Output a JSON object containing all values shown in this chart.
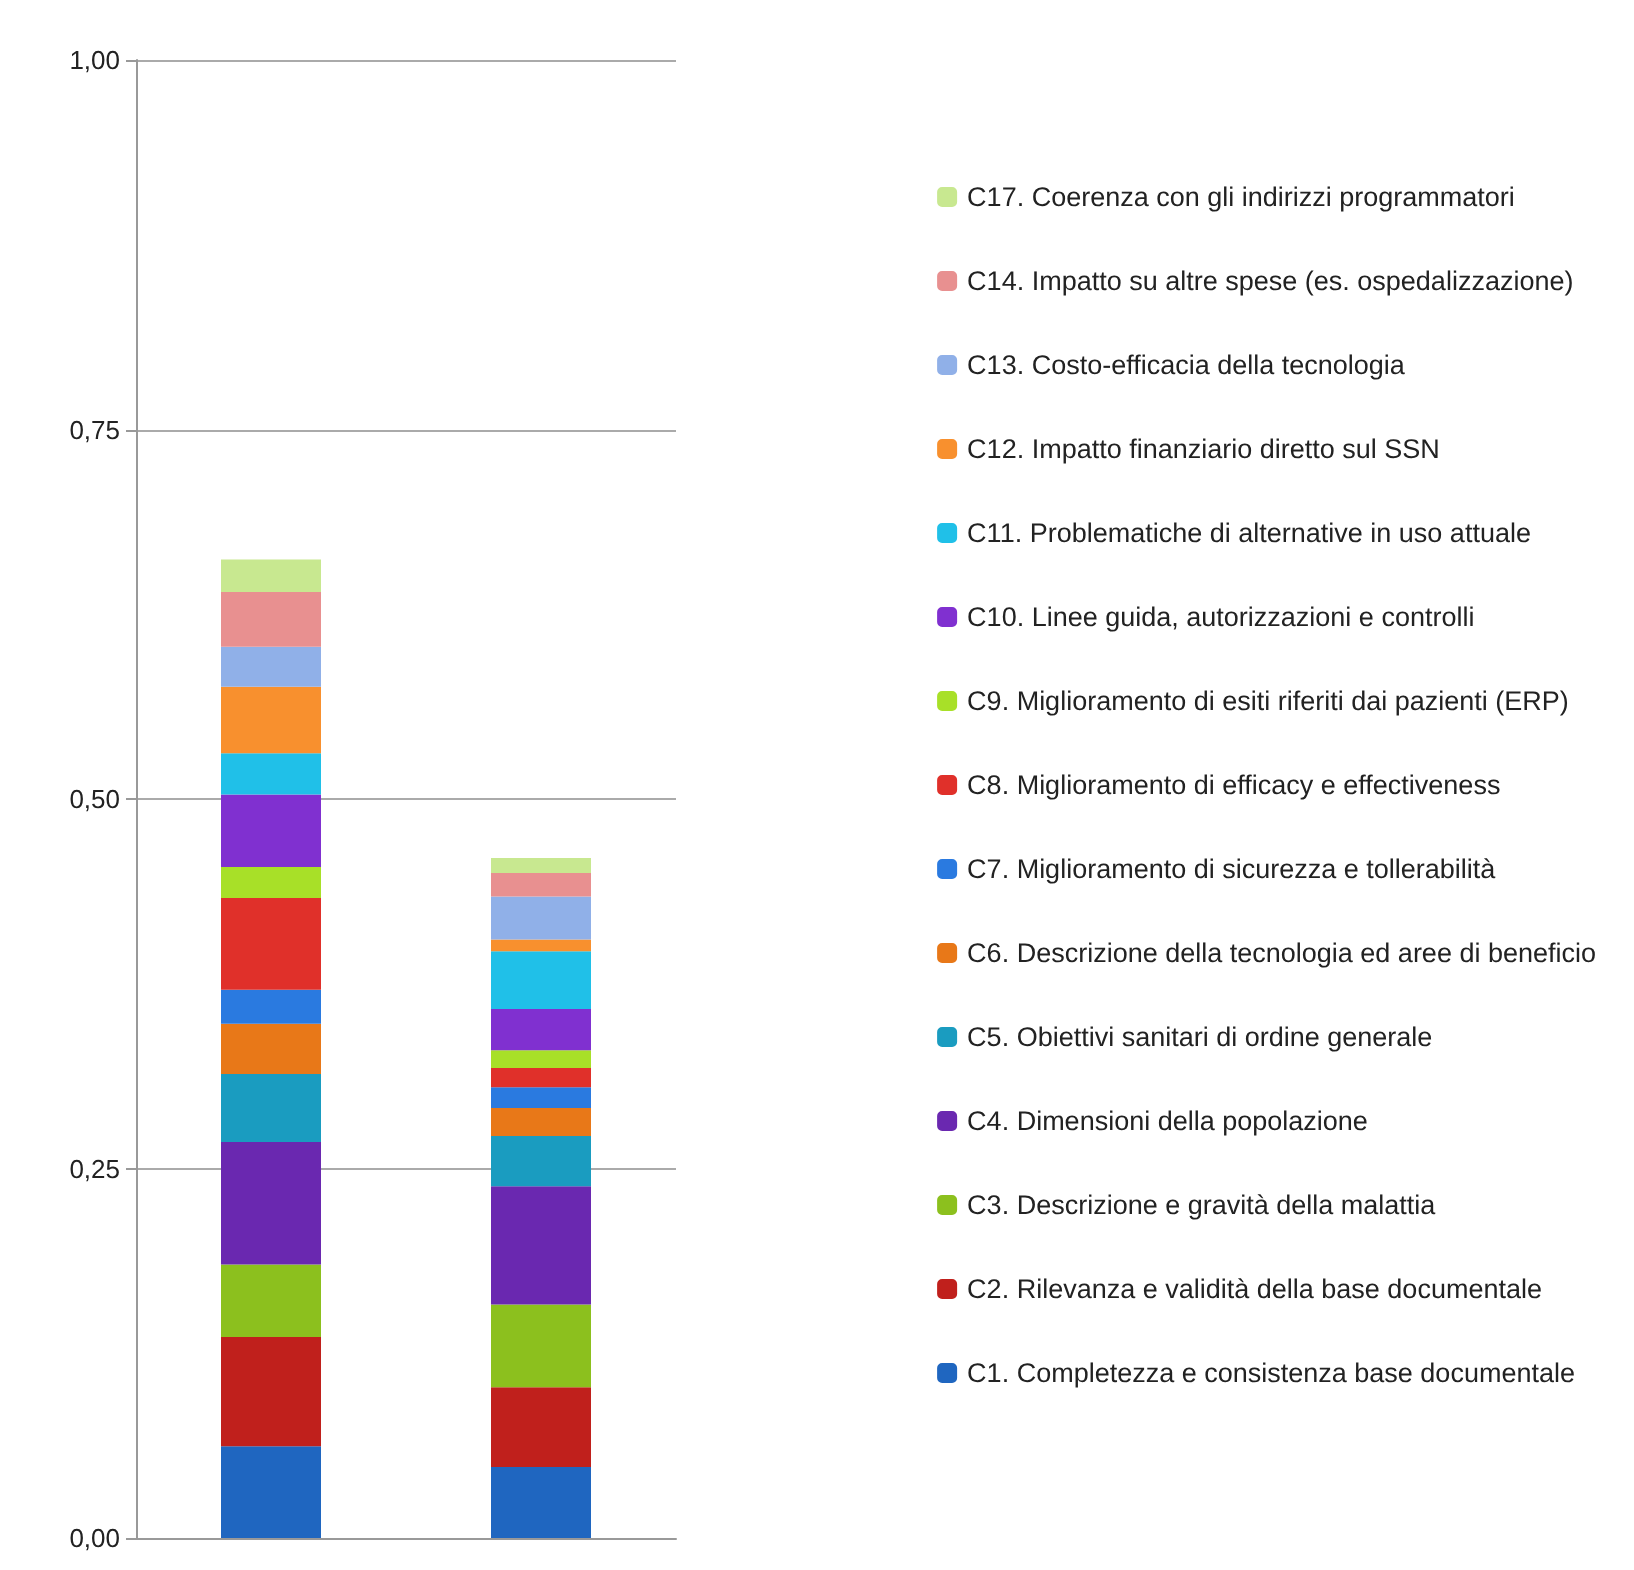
{
  "chart_data": {
    "type": "bar",
    "stacked": true,
    "categories": [
      null,
      null
    ],
    "series": [
      {
        "name": "C1. Completezza e consistenza base documentale",
        "color": "#1f66c0",
        "values": [
          0.062,
          0.048
        ]
      },
      {
        "name": "C2. Rilevanza e validità della base documentale",
        "color": "#c0201c",
        "values": [
          0.074,
          0.054
        ]
      },
      {
        "name": "C3. Descrizione e gravità della malattia",
        "color": "#8cc01e",
        "values": [
          0.049,
          0.056
        ]
      },
      {
        "name": "C4. Dimensioni della popolazione",
        "color": "#6a28b0",
        "values": [
          0.083,
          0.08
        ]
      },
      {
        "name": "C5. Obiettivi sanitari di ordine generale",
        "color": "#1a9cc0",
        "values": [
          0.046,
          0.034
        ]
      },
      {
        "name": "C6. Descrizione della tecnologia ed aree di beneficio",
        "color": "#e87818",
        "values": [
          0.034,
          0.019
        ]
      },
      {
        "name": "C7. Miglioramento di sicurezza e tollerabilità",
        "color": "#2a7ae0",
        "values": [
          0.023,
          0.014
        ]
      },
      {
        "name": "C8. Miglioramento di efficacy e effectiveness",
        "color": "#e0302a",
        "values": [
          0.062,
          0.013
        ]
      },
      {
        "name": "C9. Miglioramento di esiti riferiti dai pazienti (ERP)",
        "color": "#a8e028",
        "values": [
          0.021,
          0.012
        ]
      },
      {
        "name": "C10. Linee guida, autorizzazioni e controlli",
        "color": "#8030d0",
        "values": [
          0.049,
          0.028
        ]
      },
      {
        "name": "C11. Problematiche di alternative in uso attuale",
        "color": "#20c0e8",
        "values": [
          0.028,
          0.039
        ]
      },
      {
        "name": "C12. Impatto finanziario diretto sul SSN",
        "color": "#f8902e",
        "values": [
          0.045,
          0.008
        ]
      },
      {
        "name": "C13. Costo-efficacia della tecnologia",
        "color": "#90b0e8",
        "values": [
          0.027,
          0.029
        ]
      },
      {
        "name": "C14. Impatto su altre spese (es. ospedalizzazione)",
        "color": "#e89090",
        "values": [
          0.037,
          0.016
        ]
      },
      {
        "name": "C17. Coerenza con gli indirizzi programmatori",
        "color": "#c8e890",
        "values": [
          0.022,
          0.01
        ]
      }
    ],
    "ylim": [
      0,
      1
    ],
    "yticks": [
      {
        "value": 0,
        "label": "0,00"
      },
      {
        "value": 0.25,
        "label": "0,25"
      },
      {
        "value": 0.5,
        "label": "0,50"
      },
      {
        "value": 0.75,
        "label": "0,75"
      },
      {
        "value": 1,
        "label": "1,00"
      }
    ],
    "grid": "y",
    "legend": "right"
  }
}
